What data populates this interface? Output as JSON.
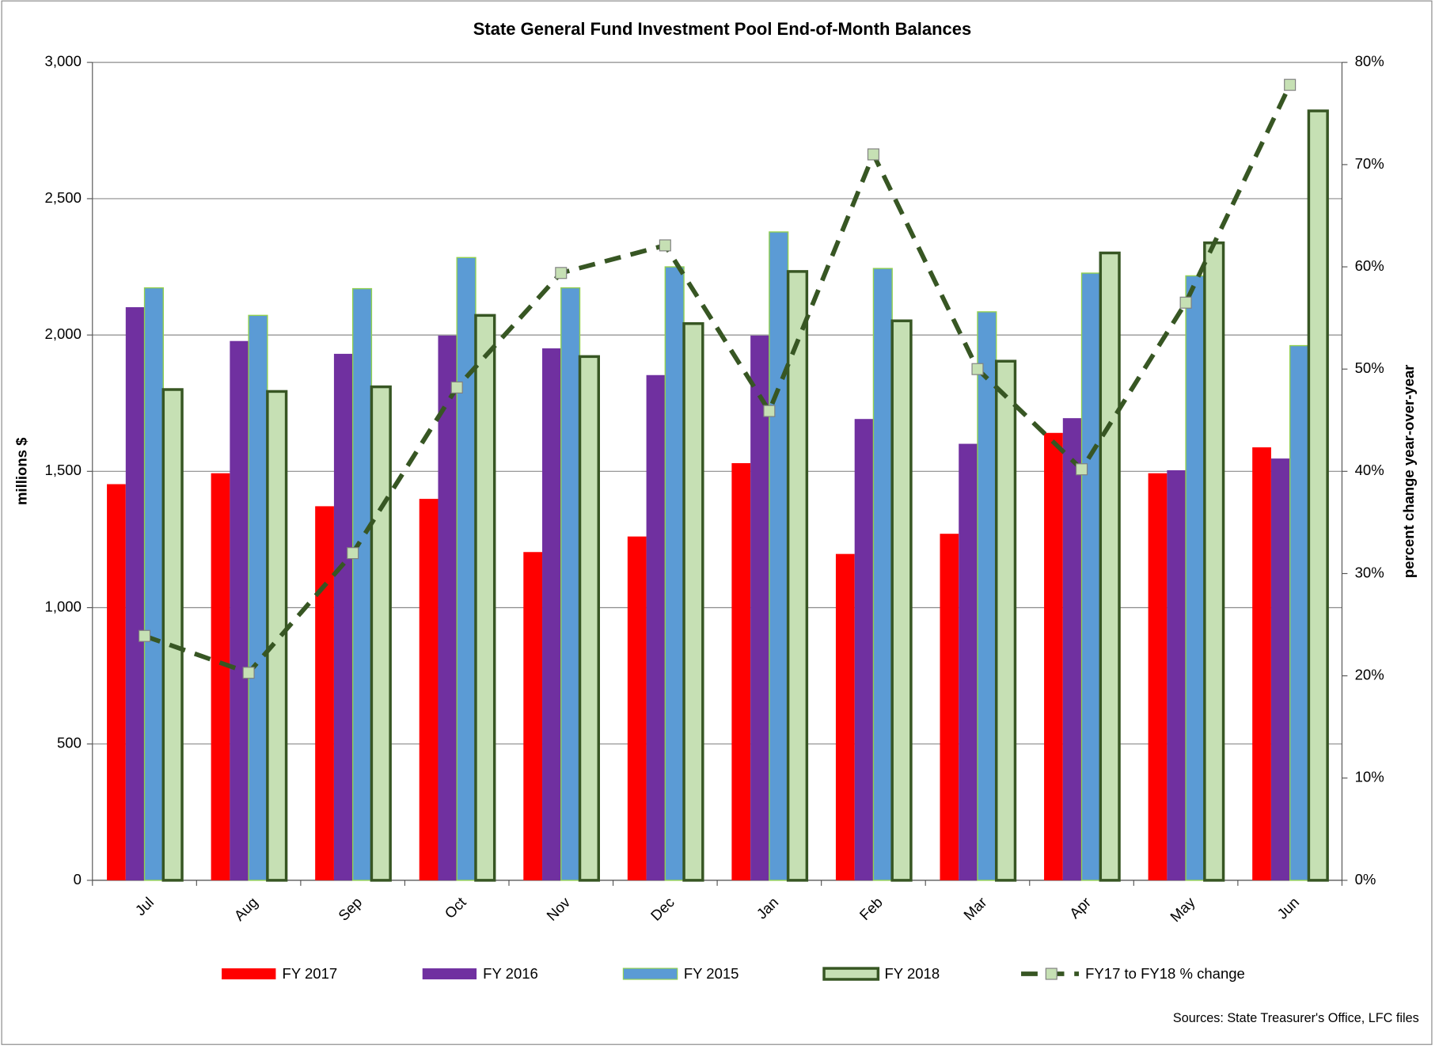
{
  "chart_data": {
    "type": "bar",
    "title": "State General Fund Investment Pool End-of-Month Balances",
    "ylabel": "millions $",
    "y2label": "percent change year-over-year",
    "source": "Sources: State Treasurer's Office, LFC files",
    "categories": [
      "Jul",
      "Aug",
      "Sep",
      "Oct",
      "Nov",
      "Dec",
      "Jan",
      "Feb",
      "Mar",
      "Apr",
      "May",
      "Jun"
    ],
    "series": [
      {
        "name": "FY 2017",
        "color": "#ff0000",
        "values": [
          1453,
          1493,
          1372,
          1399,
          1204,
          1261,
          1530,
          1197,
          1271,
          1641,
          1493,
          1588
        ]
      },
      {
        "name": "FY 2016",
        "color": "#7030a0",
        "values": [
          2102,
          1978,
          1931,
          1998,
          1951,
          1853,
          1998,
          1692,
          1601,
          1695,
          1504,
          1547
        ]
      },
      {
        "name": "FY 2015",
        "color": "#5b9bd5",
        "edgecolor": "#92d050",
        "values": [
          2173,
          2072,
          2170,
          2284,
          2173,
          2250,
          2378,
          2244,
          2085,
          2227,
          2217,
          1961
        ]
      },
      {
        "name": "FY 2018",
        "color": "#c6e0b4",
        "edgecolor": "#375623",
        "values": [
          1800,
          1793,
          1810,
          2072,
          1921,
          2042,
          2233,
          2052,
          1904,
          2301,
          2338,
          2822
        ]
      },
      {
        "name": "FY17 to FY18 % change",
        "type": "line",
        "axis": "y2",
        "color": "#375623",
        "marker_color": "#c6e0b4",
        "dashed": true,
        "values": [
          23.9,
          20.3,
          32.0,
          48.2,
          59.4,
          62.1,
          45.9,
          71.0,
          50.0,
          40.2,
          56.5,
          77.8
        ]
      }
    ],
    "ylim": [
      0,
      3000
    ],
    "yticks": [
      0,
      500,
      {
        "value": 1000,
        "label": "1,000"
      },
      {
        "value": 1500,
        "label": "1,500"
      },
      {
        "value": 2000,
        "label": "2,000"
      },
      {
        "value": 2500,
        "label": "2,500"
      },
      {
        "value": 3000,
        "label": "3,000"
      }
    ],
    "y2lim": [
      0,
      80
    ],
    "y2ticks": [
      {
        "value": 0,
        "label": "0%"
      },
      {
        "value": 10,
        "label": "10%"
      },
      {
        "value": 20,
        "label": "20%"
      },
      {
        "value": 30,
        "label": "30%"
      },
      {
        "value": 40,
        "label": "40%"
      },
      {
        "value": 50,
        "label": "50%"
      },
      {
        "value": 60,
        "label": "60%"
      },
      {
        "value": 70,
        "label": "70%"
      },
      {
        "value": 80,
        "label": "80%"
      }
    ],
    "grid": true,
    "legend": "bottom"
  }
}
